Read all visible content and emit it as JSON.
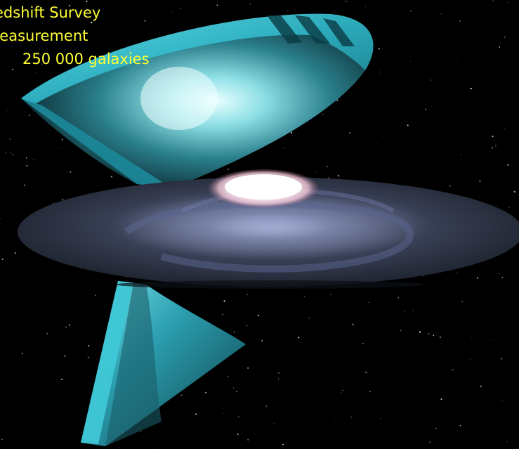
{
  "caption": {
    "line1": "edshift Survey",
    "line2": "neasurement",
    "line3": "250 000 galaxies"
  },
  "colors": {
    "caption_text": "#ffff33",
    "wedge_cyan": "#3fc7d6",
    "galaxy_core": "#ffffff",
    "background": "#000000"
  }
}
